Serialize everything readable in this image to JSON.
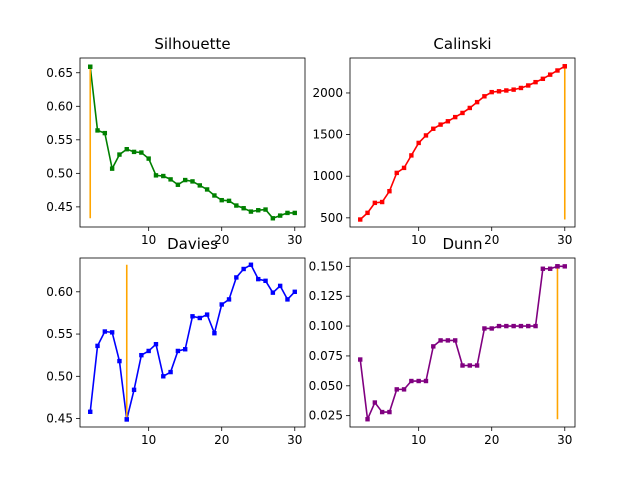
{
  "chart_data": [
    {
      "type": "line",
      "title": "Silhouette",
      "xlim": [
        0.6,
        31.4
      ],
      "ylim": [
        0.42,
        0.672
      ],
      "xticks": [
        10,
        20,
        30
      ],
      "xtick_labels": [
        "10",
        "20",
        "30"
      ],
      "yticks": [
        0.45,
        0.5,
        0.55,
        0.6,
        0.65
      ],
      "ytick_labels": [
        "0.45",
        "0.50",
        "0.55",
        "0.60",
        "0.65"
      ],
      "color": "#008000",
      "x": [
        2,
        3,
        4,
        5,
        6,
        7,
        8,
        9,
        10,
        11,
        12,
        13,
        14,
        15,
        16,
        17,
        18,
        19,
        20,
        21,
        22,
        23,
        24,
        25,
        26,
        27,
        28,
        29,
        30
      ],
      "y": [
        0.659,
        0.564,
        0.56,
        0.507,
        0.528,
        0.536,
        0.532,
        0.531,
        0.522,
        0.497,
        0.496,
        0.491,
        0.483,
        0.49,
        0.488,
        0.482,
        0.476,
        0.467,
        0.46,
        0.459,
        0.452,
        0.448,
        0.443,
        0.445,
        0.446,
        0.433,
        0.437,
        0.441,
        0.441
      ],
      "marker_line": {
        "x": 2,
        "y_from": 0.433,
        "y_to": 0.659,
        "color": "#ffa500"
      }
    },
    {
      "type": "line",
      "title": "Calinski",
      "xlim": [
        0.6,
        31.4
      ],
      "ylim": [
        390,
        2420
      ],
      "xticks": [
        10,
        20,
        30
      ],
      "xtick_labels": [
        "10",
        "20",
        "30"
      ],
      "yticks": [
        500,
        1000,
        1500,
        2000
      ],
      "ytick_labels": [
        "500",
        "1000",
        "1500",
        "2000"
      ],
      "color": "#ff0000",
      "x": [
        2,
        3,
        4,
        5,
        6,
        7,
        8,
        9,
        10,
        11,
        12,
        13,
        14,
        15,
        16,
        17,
        18,
        19,
        20,
        21,
        22,
        23,
        24,
        25,
        26,
        27,
        28,
        29,
        30
      ],
      "y": [
        480,
        560,
        680,
        690,
        820,
        1040,
        1100,
        1250,
        1400,
        1490,
        1570,
        1620,
        1660,
        1710,
        1760,
        1820,
        1890,
        1960,
        2010,
        2020,
        2030,
        2040,
        2060,
        2090,
        2130,
        2170,
        2220,
        2270,
        2320
      ],
      "marker_line": {
        "x": 30,
        "y_from": 480,
        "y_to": 2320,
        "color": "#ffa500"
      }
    },
    {
      "type": "line",
      "title": "Davies",
      "xlim": [
        0.6,
        31.4
      ],
      "ylim": [
        0.44,
        0.64
      ],
      "xticks": [
        10,
        20,
        30
      ],
      "xtick_labels": [
        "10",
        "20",
        "30"
      ],
      "yticks": [
        0.45,
        0.5,
        0.55,
        0.6
      ],
      "ytick_labels": [
        "0.45",
        "0.50",
        "0.55",
        "0.60"
      ],
      "color": "#0000ff",
      "x": [
        2,
        3,
        4,
        5,
        6,
        7,
        8,
        9,
        10,
        11,
        12,
        13,
        14,
        15,
        16,
        17,
        18,
        19,
        20,
        21,
        22,
        23,
        24,
        25,
        26,
        27,
        28,
        29,
        30
      ],
      "y": [
        0.458,
        0.536,
        0.553,
        0.552,
        0.518,
        0.449,
        0.484,
        0.525,
        0.53,
        0.538,
        0.5,
        0.505,
        0.53,
        0.532,
        0.571,
        0.569,
        0.573,
        0.551,
        0.585,
        0.591,
        0.617,
        0.627,
        0.632,
        0.615,
        0.613,
        0.599,
        0.607,
        0.591,
        0.6
      ],
      "marker_line": {
        "x": 7,
        "y_from": 0.449,
        "y_to": 0.632,
        "color": "#ffa500"
      }
    },
    {
      "type": "line",
      "title": "Dunn",
      "xlim": [
        0.6,
        31.4
      ],
      "ylim": [
        0.0155,
        0.157
      ],
      "xticks": [
        10,
        20,
        30
      ],
      "xtick_labels": [
        "10",
        "20",
        "30"
      ],
      "yticks": [
        0.025,
        0.05,
        0.075,
        0.1,
        0.125,
        0.15
      ],
      "ytick_labels": [
        "0.025",
        "0.050",
        "0.075",
        "0.100",
        "0.125",
        "0.150"
      ],
      "color": "#800080",
      "x": [
        2,
        3,
        4,
        5,
        6,
        7,
        8,
        9,
        10,
        11,
        12,
        13,
        14,
        15,
        16,
        17,
        18,
        19,
        20,
        21,
        22,
        23,
        24,
        25,
        26,
        27,
        28,
        29,
        30
      ],
      "y": [
        0.072,
        0.022,
        0.036,
        0.028,
        0.028,
        0.047,
        0.047,
        0.054,
        0.054,
        0.054,
        0.083,
        0.088,
        0.088,
        0.088,
        0.067,
        0.067,
        0.067,
        0.098,
        0.098,
        0.1,
        0.1,
        0.1,
        0.1,
        0.1,
        0.1,
        0.148,
        0.148,
        0.15,
        0.15
      ],
      "marker_line": {
        "x": 29,
        "y_from": 0.022,
        "y_to": 0.15,
        "color": "#ffa500"
      }
    }
  ]
}
